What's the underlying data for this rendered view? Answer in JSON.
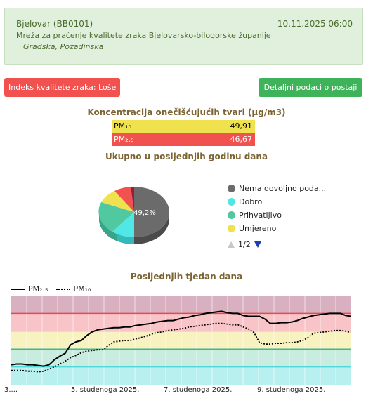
{
  "header": {
    "station": "Bjelovar (BB0101)",
    "datetime": "10.11.2025 06:00",
    "network": "Mreža za praćenje kvalitete zraka Bjelovarsko-bilogorske županije",
    "location": "Gradska, Pozadinska"
  },
  "aqi_badge": "Indeks kvalitete zraka: Loše",
  "details_button": "Detaljni podaci o postaji",
  "concentration": {
    "title": "Koncentracija onečišćujućih tvari (µg/m3)",
    "rows": [
      {
        "label": "PM₁₀",
        "value": "49,91",
        "color": "#f0e24f"
      },
      {
        "label": "PM₂.₅",
        "value": "46,67",
        "color": "#f2524f"
      }
    ]
  },
  "year": {
    "title": "Ukupno u posljednjih godinu dana",
    "pie_label": "49,2%",
    "legend": [
      {
        "label": "Nema dovoljno poda...",
        "color": "#6b6b6b"
      },
      {
        "label": "Dobro",
        "color": "#50e7e7"
      },
      {
        "label": "Prihvatljivo",
        "color": "#50c8a0"
      },
      {
        "label": "Umjereno",
        "color": "#f0e24f"
      }
    ],
    "pager": "1/2"
  },
  "week": {
    "title": "Posljednjih tjedan dana",
    "series": [
      "PM₂.₅",
      "PM₁₀"
    ],
    "xticks": [
      "3....",
      "5. studenoga 2025.",
      "7. studenoga 2025.",
      "9. studenoga 2025."
    ]
  },
  "chart_data": {
    "type": "line",
    "title": "Posljednjih tjedan dana",
    "xlabel": "",
    "ylabel": "",
    "x_ticks": [
      "3....",
      "5. studenoga 2025.",
      "7. studenoga 2025.",
      "9. studenoga 2025."
    ],
    "ylim": [
      0,
      125
    ],
    "bands": [
      {
        "from": 0,
        "to": 25,
        "color": "#b8f0f0"
      },
      {
        "from": 25,
        "to": 50,
        "color": "#c8ece0"
      },
      {
        "from": 50,
        "to": 75,
        "color": "#f8f2c0"
      },
      {
        "from": 75,
        "to": 100,
        "color": "#f9c4c8"
      },
      {
        "from": 100,
        "to": 125,
        "color": "#d8b0c0"
      }
    ],
    "series": [
      {
        "name": "PM₂.₅",
        "style": "solid",
        "values": [
          28,
          29,
          29,
          28,
          28,
          27,
          26,
          28,
          35,
          40,
          44,
          56,
          60,
          62,
          69,
          74,
          77,
          78,
          79,
          80,
          80,
          81,
          81,
          83,
          84,
          85,
          86,
          88,
          89,
          90,
          90,
          92,
          94,
          95,
          97,
          98,
          100,
          101,
          102,
          103,
          101,
          100,
          100,
          97,
          96,
          96,
          96,
          92,
          86,
          86,
          87,
          87,
          88,
          90,
          93,
          95,
          97,
          98,
          99,
          100,
          100,
          100,
          97,
          96
        ]
      },
      {
        "name": "PM₁₀",
        "style": "dotted",
        "values": [
          20,
          20,
          20,
          19,
          19,
          18,
          19,
          22,
          25,
          29,
          33,
          38,
          41,
          45,
          47,
          48,
          49,
          49,
          55,
          60,
          61,
          62,
          62,
          64,
          66,
          68,
          71,
          73,
          74,
          76,
          77,
          78,
          79,
          81,
          82,
          83,
          84,
          85,
          86,
          86,
          85,
          84,
          84,
          81,
          78,
          73,
          59,
          57,
          57,
          58,
          58,
          59,
          59,
          60,
          62,
          66,
          72,
          73,
          74,
          75,
          76,
          76,
          75,
          73
        ]
      }
    ]
  }
}
